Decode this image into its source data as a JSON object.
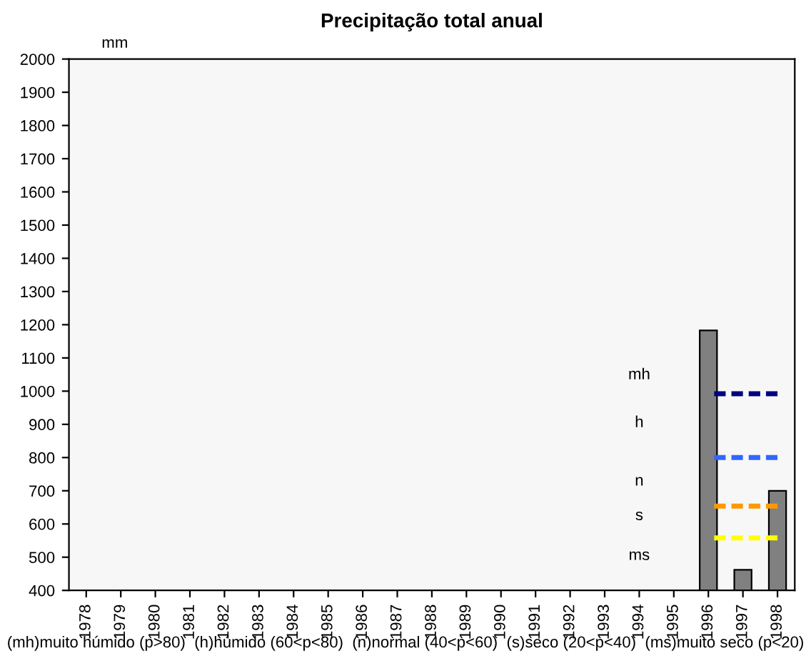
{
  "chart_data": {
    "type": "bar",
    "title": "Precipitação total anual",
    "ylabel": "mm",
    "categories": [
      "1978",
      "1979",
      "1980",
      "1981",
      "1982",
      "1983",
      "1984",
      "1985",
      "1986",
      "1987",
      "1988",
      "1989",
      "1990",
      "1991",
      "1992",
      "1993",
      "1994",
      "1995",
      "1996",
      "1997",
      "1998"
    ],
    "series": [
      {
        "color": "#808080",
        "values": [
          null,
          null,
          null,
          null,
          null,
          null,
          null,
          null,
          null,
          null,
          null,
          null,
          null,
          null,
          null,
          null,
          null,
          null,
          1183,
          462,
          700
        ]
      },
      {
        "type": "line",
        "color": "#000080",
        "line_style": "dashed",
        "marker": "none",
        "values": [
          null,
          null,
          null,
          null,
          null,
          null,
          null,
          null,
          null,
          null,
          null,
          null,
          null,
          null,
          null,
          null,
          null,
          null,
          992,
          992,
          992
        ]
      },
      {
        "type": "line",
        "color": "#3366ff",
        "line_style": "dashed",
        "marker": "none",
        "values": [
          null,
          null,
          null,
          null,
          null,
          null,
          null,
          null,
          null,
          null,
          null,
          null,
          null,
          null,
          null,
          null,
          null,
          null,
          800,
          800,
          800
        ]
      },
      {
        "type": "line",
        "color": "#ff9900",
        "line_style": "dashed",
        "marker": "none",
        "values": [
          null,
          null,
          null,
          null,
          null,
          null,
          null,
          null,
          null,
          null,
          null,
          null,
          null,
          null,
          null,
          null,
          null,
          null,
          654,
          654,
          654
        ]
      },
      {
        "type": "line",
        "color": "#ffff00",
        "line_style": "dashed",
        "marker": "none",
        "values": [
          null,
          null,
          null,
          null,
          null,
          null,
          null,
          null,
          null,
          null,
          null,
          null,
          null,
          null,
          null,
          null,
          null,
          null,
          558,
          558,
          558
        ]
      }
    ],
    "ylim": [
      400,
      2000
    ],
    "yticks": [
      400,
      500,
      600,
      700,
      800,
      900,
      1000,
      1100,
      1200,
      1300,
      1400,
      1500,
      1600,
      1700,
      1800,
      1900,
      2000
    ],
    "grid": false,
    "legend": false,
    "annotations": [
      "mh",
      "h",
      "n",
      "s",
      "ms",
      "(mh)muito húmido (p>80)  (h)húmido (60<p<80)  (n)normal (40<p<60)  (s)seco (20<p<40)  (ms)muito seco (p<20)"
    ]
  }
}
